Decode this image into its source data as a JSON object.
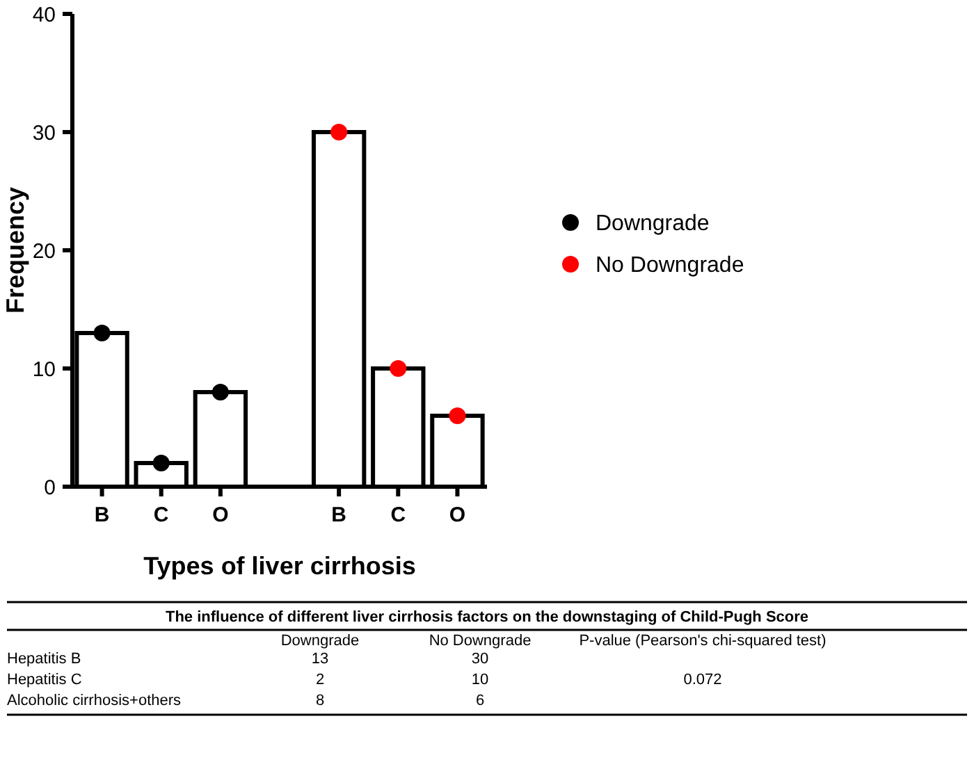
{
  "chart_data": {
    "type": "bar",
    "xlabel": "Types of liver cirrhosis",
    "ylabel": "Frequency",
    "categories": [
      "B",
      "C",
      "O",
      null,
      "B",
      "C",
      "O"
    ],
    "series": [
      {
        "color": "#ffffff",
        "values": [
          13,
          2,
          8,
          null,
          30,
          10,
          6
        ]
      },
      {
        "type": "scatter",
        "name": "Downgrade",
        "color": "#000000",
        "values": [
          13,
          2,
          8,
          null,
          null,
          null,
          null
        ]
      },
      {
        "type": "scatter",
        "name": "No Downgrade",
        "color": "#ff0000",
        "values": [
          null,
          null,
          null,
          null,
          30,
          10,
          6
        ]
      }
    ],
    "ylim": [
      0,
      40
    ],
    "yticks": [
      0,
      10,
      20,
      30,
      40
    ],
    "grid": false,
    "legend": "right",
    "marker": "circle",
    "annotations": [
      "The influence of different liver cirrhosis factors on the downstaging of Child-Pugh Score",
      "Hepatitis B",
      "13",
      "30",
      "Hepatitis C",
      "2",
      "10",
      "Alcoholic cirrhosis+others",
      "8",
      "6",
      "P-value (Pearson's chi-squared test)",
      "0.072"
    ]
  }
}
